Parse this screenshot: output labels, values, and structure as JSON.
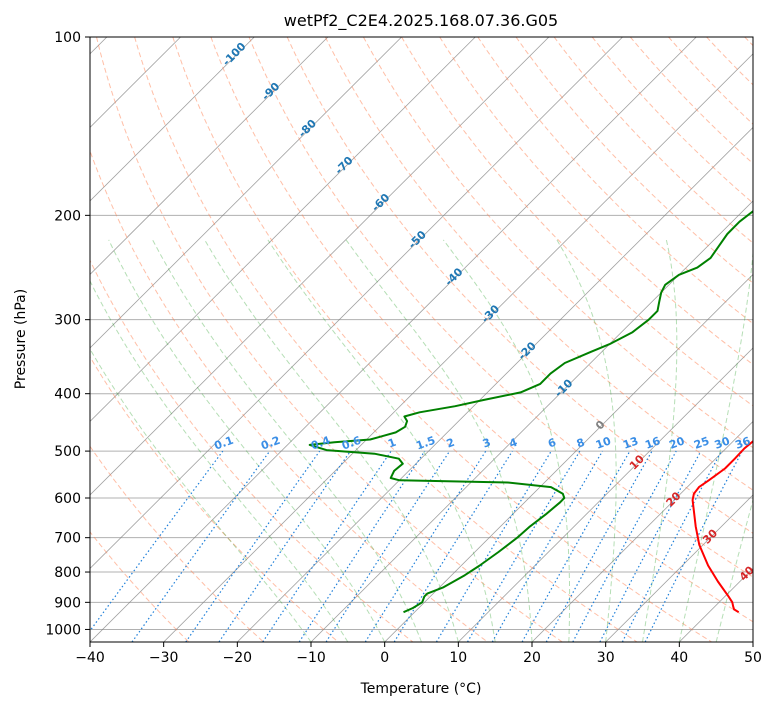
{
  "chart_data": {
    "type": "line",
    "title": "wetPf2_C2E4.2025.168.07.36.G05",
    "xlabel": "Temperature (°C)",
    "ylabel": "Pressure (hPa)",
    "xlim": [
      -40,
      50
    ],
    "ylim": [
      1050,
      100
    ],
    "y_scale": "log",
    "x_ticks": [
      -40,
      -30,
      -20,
      -10,
      0,
      10,
      20,
      30,
      40,
      50
    ],
    "y_ticks": [
      100,
      200,
      300,
      400,
      500,
      600,
      700,
      800,
      900,
      1000
    ],
    "grid": true,
    "series": [
      {
        "role": "temperature",
        "color": "#ff0000",
        "points": [
          [
            44.0,
            935
          ],
          [
            43.0,
            925
          ],
          [
            42.5,
            915
          ],
          [
            41.8,
            900
          ],
          [
            40.5,
            880
          ],
          [
            37.0,
            830
          ],
          [
            33.5,
            780
          ],
          [
            29.5,
            720
          ],
          [
            26.5,
            670
          ],
          [
            22.5,
            605
          ],
          [
            21.8,
            590
          ],
          [
            21.6,
            575
          ],
          [
            22.0,
            560
          ],
          [
            22.6,
            535
          ],
          [
            22.6,
            515
          ],
          [
            22.5,
            495
          ],
          [
            22.8,
            475
          ],
          [
            23.2,
            450
          ],
          [
            23.3,
            430
          ],
          [
            22.5,
            400
          ],
          [
            21.5,
            375
          ],
          [
            20.0,
            350
          ],
          [
            18.0,
            320
          ],
          [
            15.0,
            295
          ],
          [
            13.7,
            280
          ],
          [
            13.0,
            260
          ],
          [
            12.0,
            240
          ],
          [
            11.0,
            225
          ],
          [
            10.5,
            210
          ],
          [
            9.2,
            200
          ],
          [
            7.2,
            185
          ],
          [
            5.5,
            170
          ],
          [
            4.2,
            160
          ],
          [
            2.5,
            140
          ],
          [
            1.5,
            125
          ],
          [
            1.3,
            115
          ],
          [
            1.3,
            105
          ],
          [
            1.2,
            100
          ]
        ]
      },
      {
        "role": "dewpoint",
        "color": "#008000",
        "points": [
          [
            -1.5,
            935
          ],
          [
            -0.8,
            920
          ],
          [
            -0.3,
            900
          ],
          [
            -0.8,
            880
          ],
          [
            -0.8,
            870
          ],
          [
            0.5,
            850
          ],
          [
            1.8,
            810
          ],
          [
            2.5,
            780
          ],
          [
            3.2,
            740
          ],
          [
            3.8,
            700
          ],
          [
            4.0,
            670
          ],
          [
            4.5,
            640
          ],
          [
            4.8,
            610
          ],
          [
            4.8,
            600
          ],
          [
            4.0,
            590
          ],
          [
            1.5,
            575
          ],
          [
            -5.0,
            565
          ],
          [
            -20.0,
            560
          ],
          [
            -21.5,
            555
          ],
          [
            -22.0,
            540
          ],
          [
            -21.8,
            525
          ],
          [
            -23.0,
            515
          ],
          [
            -27.0,
            505
          ],
          [
            -34.0,
            498
          ],
          [
            -37.0,
            488
          ],
          [
            -34.0,
            483
          ],
          [
            -29.5,
            478
          ],
          [
            -27.0,
            465
          ],
          [
            -26.5,
            455
          ],
          [
            -27.0,
            445
          ],
          [
            -28.0,
            437
          ],
          [
            -26.5,
            430
          ],
          [
            -22.5,
            420
          ],
          [
            -19.5,
            410
          ],
          [
            -15.5,
            398
          ],
          [
            -14.0,
            385
          ],
          [
            -14.0,
            370
          ],
          [
            -13.5,
            355
          ],
          [
            -11.5,
            340
          ],
          [
            -10.0,
            330
          ],
          [
            -8.5,
            315
          ],
          [
            -8.0,
            300
          ],
          [
            -8.0,
            290
          ],
          [
            -9.0,
            280
          ],
          [
            -10.0,
            270
          ],
          [
            -10.5,
            262
          ],
          [
            -10.0,
            252
          ],
          [
            -8.5,
            245
          ],
          [
            -8.0,
            236
          ],
          [
            -8.5,
            225
          ],
          [
            -9.0,
            215
          ],
          [
            -9.0,
            205
          ],
          [
            -8.5,
            195
          ],
          [
            -7.5,
            180
          ],
          [
            -6.0,
            165
          ],
          [
            -4.5,
            150
          ],
          [
            -3.0,
            135
          ],
          [
            -1.5,
            120
          ],
          [
            -0.5,
            110
          ],
          [
            0.5,
            100
          ]
        ]
      }
    ],
    "isotherm_labels": [
      "-100",
      "-90",
      "-80",
      "-70",
      "-60",
      "-50",
      "-40",
      "-30",
      "-20",
      "-10",
      "0",
      "10",
      "20",
      "30",
      "40"
    ],
    "mixing_ratio_labels": [
      "0.1",
      "0.2",
      "0.4",
      "0.6",
      "1",
      "1.5",
      "2",
      "3",
      "4",
      "6",
      "8",
      "10",
      "13",
      "16",
      "20",
      "25",
      "30",
      "36"
    ],
    "mixing_ratio_values": [
      0.1,
      0.2,
      0.4,
      0.6,
      1,
      1.5,
      2,
      3,
      4,
      6,
      8,
      10,
      13,
      16,
      20,
      25,
      30,
      36
    ],
    "colors": {
      "temperature": "#ff0000",
      "dewpoint": "#008000",
      "isotherm": "#808080",
      "dry_adiabat": "#ff7f50",
      "moist_adiabat": "#2ca02c",
      "mixing_ratio": "#1e7fd9",
      "cold_label": "#1f77b4",
      "warm_label": "#d62728",
      "zero_label": "#808080"
    }
  }
}
